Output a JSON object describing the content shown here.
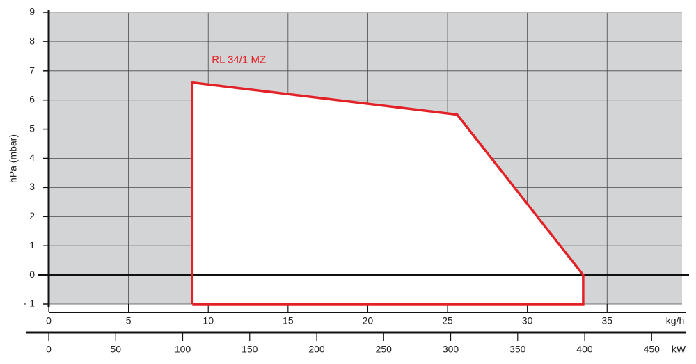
{
  "chart_data": {
    "type": "area",
    "ylabel": "hPa (mbar)",
    "xlabel": "kg/h",
    "x2label": "kW",
    "xlim": [
      0,
      39.7
    ],
    "xticks": [
      0,
      5,
      10,
      15,
      20,
      25,
      30,
      35
    ],
    "x2lim": [
      0,
      472.7
    ],
    "x2ticks": [
      0,
      50,
      100,
      150,
      200,
      250,
      300,
      350,
      400,
      450
    ],
    "ylim": [
      -1,
      9
    ],
    "yticks": [
      {
        "value": -1,
        "label": "- 1"
      },
      0,
      1,
      2,
      3,
      4,
      5,
      6,
      7,
      8,
      9
    ],
    "grid": true,
    "background": "#d3d4d6",
    "series": [
      {
        "name": "RL 34/1 MZ",
        "color": "#e32228",
        "x": [
          9,
          9,
          25.6,
          33.5,
          33.5,
          9
        ],
        "values": [
          -1,
          6.6,
          5.5,
          0,
          -1,
          -1
        ]
      }
    ]
  }
}
